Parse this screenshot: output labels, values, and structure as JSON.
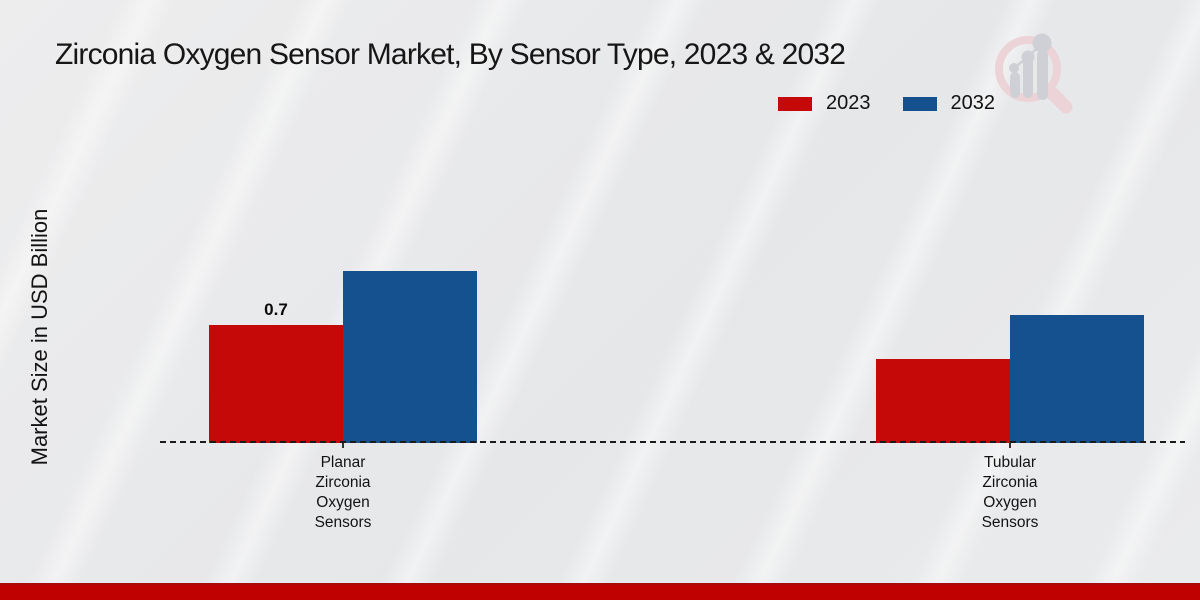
{
  "chart_data": {
    "type": "bar",
    "title": "Zirconia Oxygen Sensor Market, By Sensor Type, 2023 & 2032",
    "xlabel": "",
    "ylabel": "Market Size in USD Billion",
    "categories": [
      "Planar Zirconia Oxygen Sensors",
      "Tubular Zirconia Oxygen Sensors"
    ],
    "series": [
      {
        "name": "2023",
        "color": "#c50808",
        "values": [
          0.7,
          0.5
        ]
      },
      {
        "name": "2032",
        "color": "#15518f",
        "values": [
          1.02,
          0.76
        ]
      }
    ],
    "annotations": [
      {
        "series_index": 0,
        "category_index": 0,
        "text": "0.7"
      }
    ],
    "ylim": [
      0,
      1.72
    ],
    "grid": false,
    "legend_position": "top-right",
    "baseline_style": "dashed"
  },
  "footer": {
    "bar_color": "#c00102"
  },
  "logo": {
    "name": "magnifier-bar-chart-watermark",
    "circle_color": "#ecd3d7",
    "bars_color": "#cfd0d5"
  }
}
